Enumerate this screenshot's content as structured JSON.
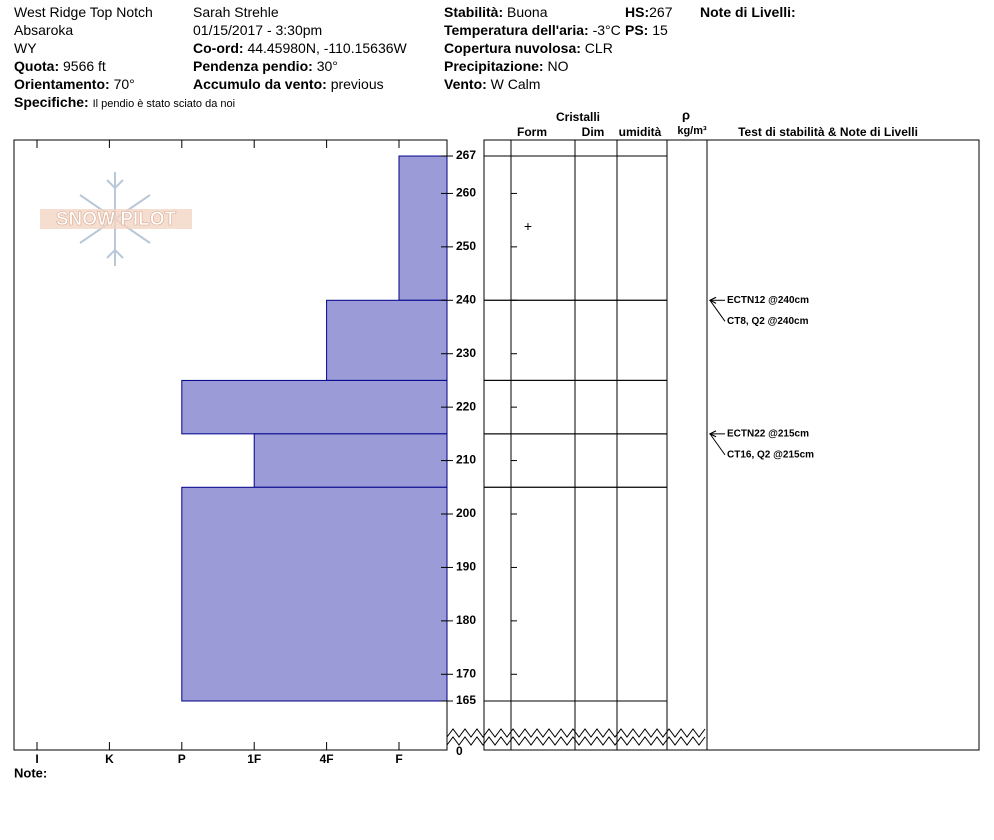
{
  "header": {
    "site": "West Ridge Top Notch",
    "range": "Absaroka",
    "state": "WY",
    "observer": "Sarah Strehle",
    "datetime": "01/15/2017 - 3:30pm",
    "elevation": {
      "label": "Quota:",
      "value": "9566 ft"
    },
    "aspect": {
      "label": "Orientamento:",
      "value": "70°"
    },
    "specifics": {
      "label": "Specifiche:",
      "value": "Il pendio è stato sciato da noi"
    },
    "coord": {
      "label": "Co-ord:",
      "value": "44.45980N, -110.15636W"
    },
    "slope": {
      "label": "Pendenza pendio:",
      "value": "30°"
    },
    "wind_loading": {
      "label": "Accumulo da vento:",
      "value": "previous"
    },
    "stability": {
      "label": "Stabilità:",
      "value": "Buona"
    },
    "air_temp": {
      "label": "Temperatura dell'aria:",
      "value": "-3°C"
    },
    "sky": {
      "label": "Copertura nuvolosa:",
      "value": "CLR"
    },
    "precip": {
      "label": "Precipitazione:",
      "value": "NO"
    },
    "wind": {
      "label": "Vento:",
      "value": "W Calm"
    },
    "hs": {
      "label": "HS:",
      "value": "267"
    },
    "ps": {
      "label": "PS:",
      "value": "15"
    },
    "layer_notes_title": "Note di Livelli:"
  },
  "chart_data": {
    "type": "snow-profile",
    "logo": "SNOW PILOT",
    "hardness_categories": [
      "I",
      "K",
      "P",
      "1F",
      "4F",
      "F"
    ],
    "ylim": [
      165,
      270
    ],
    "yticks": [
      267,
      260,
      250,
      240,
      230,
      220,
      210,
      200,
      190,
      180,
      170,
      165
    ],
    "ybreak_tick": 0,
    "color": "#9b9bd7",
    "layers": [
      {
        "top": 267,
        "bottom": 240,
        "hardness": "F",
        "form": "+"
      },
      {
        "top": 240,
        "bottom": 225,
        "hardness": "4F"
      },
      {
        "top": 225,
        "bottom": 215,
        "hardness": "P"
      },
      {
        "top": 215,
        "bottom": 205,
        "hardness": "1F"
      },
      {
        "top": 205,
        "bottom": 165,
        "hardness": "P"
      }
    ],
    "table_headers": {
      "crystals": "Cristalli",
      "form": "Form",
      "size": "Dim",
      "moisture": "umidità",
      "density_symbol": "ρ",
      "density_unit": "kg/m³",
      "tests": "Test di stabilità & Note di Livelli"
    },
    "tests": [
      {
        "depth": 240,
        "label": "ECTN12 @240cm"
      },
      {
        "depth": 240,
        "label": "CT8, Q2 @240cm"
      },
      {
        "depth": 215,
        "label": "ECTN22 @215cm"
      },
      {
        "depth": 215,
        "label": "CT16, Q2 @215cm"
      }
    ],
    "note_label": "Note:"
  }
}
